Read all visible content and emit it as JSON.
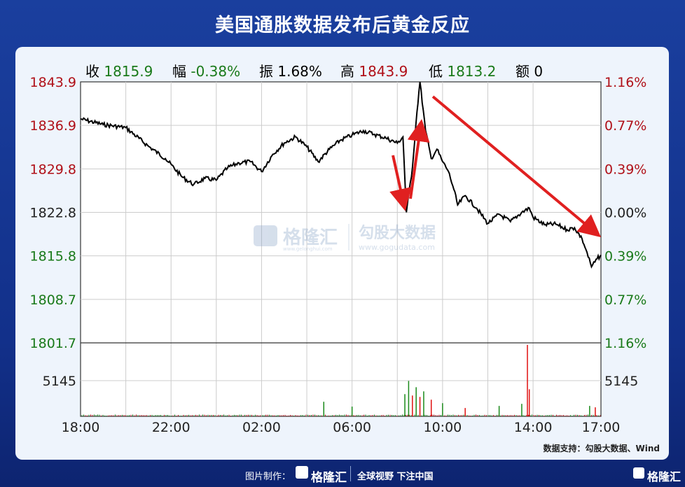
{
  "title": "美国通胀数据发布后黄金反应",
  "stats": [
    {
      "label": "收",
      "value": "1815.9",
      "color": "#1a7a1a"
    },
    {
      "label": "幅",
      "value": "-0.38%",
      "color": "#1a7a1a"
    },
    {
      "label": "振",
      "value": "1.68%",
      "color": "#222222"
    },
    {
      "label": "高",
      "value": "1843.9",
      "color": "#b01018"
    },
    {
      "label": "低",
      "value": "1813.2",
      "color": "#1a7a1a"
    },
    {
      "label": "额",
      "value": "0",
      "color": "#222222"
    }
  ],
  "source": "数据支持：勾股大数据、Wind",
  "watermark": {
    "brand": "格隆汇",
    "brand_url": "www.gelonghui.com",
    "data_brand": "勾股大数据",
    "data_url": "www.gogudata.com"
  },
  "footer": {
    "made_by": "图片制作：",
    "brand": "格隆汇",
    "slogan": "全球视野 下注中国",
    "corner_brand": "格隆汇"
  },
  "colors": {
    "up": "#b01018",
    "down": "#1a7a1a",
    "line": "#000000",
    "arrow": "#e02020"
  },
  "chart_data": {
    "type": "line",
    "ylim": [
      1801.7,
      1843.9
    ],
    "left_ticks": [
      "1843.9",
      "1836.9",
      "1829.8",
      "1822.8",
      "1815.8",
      "1808.7",
      "1801.7"
    ],
    "right_ticks": [
      "1.16%",
      "0.77%",
      "0.39%",
      "0.00%",
      "0.39%",
      "0.77%",
      "1.16%"
    ],
    "x_ticks": [
      "18:00",
      "22:00",
      "02:00",
      "06:00",
      "10:00",
      "14:00",
      "17:00"
    ],
    "grid": true,
    "volume_tick": "5145",
    "volume_tick_value": 5145,
    "series": [
      {
        "points": [
          [
            "18:00",
            1837.9
          ],
          [
            "19:00",
            1837.0
          ],
          [
            "20:00",
            1836.5
          ],
          [
            "21:00",
            1833.5
          ],
          [
            "21:45",
            1831.5
          ],
          [
            "22:30",
            1828.5
          ],
          [
            "23:00",
            1827.3
          ],
          [
            "23:30",
            1828.3
          ],
          [
            "00:00",
            1828.0
          ],
          [
            "00:30",
            1830.0
          ],
          [
            "01:00",
            1830.8
          ],
          [
            "01:30",
            1831.0
          ],
          [
            "02:00",
            1829.4
          ],
          [
            "02:30",
            1832.2
          ],
          [
            "03:00",
            1834.0
          ],
          [
            "03:30",
            1835.0
          ],
          [
            "04:00",
            1833.4
          ],
          [
            "04:30",
            1831.0
          ],
          [
            "05:00",
            1833.0
          ],
          [
            "05:30",
            1834.5
          ],
          [
            "06:00",
            1835.3
          ],
          [
            "06:30",
            1836.0
          ],
          [
            "07:00",
            1835.4
          ],
          [
            "07:30",
            1834.8
          ],
          [
            "08:00",
            1834.0
          ],
          [
            "08:15",
            1835.0
          ],
          [
            "08:24",
            1822.8
          ],
          [
            "08:40",
            1830.0
          ],
          [
            "08:52",
            1839.0
          ],
          [
            "09:00",
            1843.9
          ],
          [
            "09:15",
            1836.0
          ],
          [
            "09:30",
            1831.5
          ],
          [
            "09:45",
            1833.0
          ],
          [
            "10:00",
            1831.0
          ],
          [
            "10:15",
            1829.5
          ],
          [
            "10:30",
            1826.5
          ],
          [
            "10:40",
            1824.0
          ],
          [
            "11:00",
            1825.5
          ],
          [
            "11:30",
            1823.5
          ],
          [
            "12:00",
            1821.0
          ],
          [
            "12:30",
            1822.5
          ],
          [
            "13:00",
            1821.3
          ],
          [
            "13:30",
            1822.8
          ],
          [
            "13:50",
            1823.5
          ],
          [
            "14:00",
            1822.0
          ],
          [
            "14:30",
            1820.8
          ],
          [
            "15:00",
            1820.9
          ],
          [
            "15:30",
            1820.0
          ],
          [
            "15:50",
            1820.3
          ],
          [
            "16:10",
            1818.5
          ],
          [
            "16:20",
            1816.8
          ],
          [
            "16:35",
            1814.0
          ],
          [
            "16:50",
            1815.3
          ],
          [
            "17:00",
            1815.9
          ]
        ]
      }
    ],
    "volume": [
      [
        "04:45",
        2100,
        "down"
      ],
      [
        "06:00",
        1400,
        "down"
      ],
      [
        "08:20",
        3200,
        "down"
      ],
      [
        "08:30",
        5100,
        "down"
      ],
      [
        "08:40",
        3000,
        "up"
      ],
      [
        "08:50",
        4200,
        "down"
      ],
      [
        "09:00",
        2800,
        "up"
      ],
      [
        "09:10",
        3600,
        "down"
      ],
      [
        "09:30",
        2400,
        "up"
      ],
      [
        "10:00",
        1900,
        "down"
      ],
      [
        "11:00",
        1200,
        "up"
      ],
      [
        "12:30",
        1500,
        "down"
      ],
      [
        "13:30",
        1800,
        "down"
      ],
      [
        "13:45",
        10300,
        "up"
      ],
      [
        "13:50",
        3900,
        "up"
      ],
      [
        "16:30",
        1500,
        "down"
      ],
      [
        "16:45",
        1300,
        "up"
      ]
    ]
  }
}
